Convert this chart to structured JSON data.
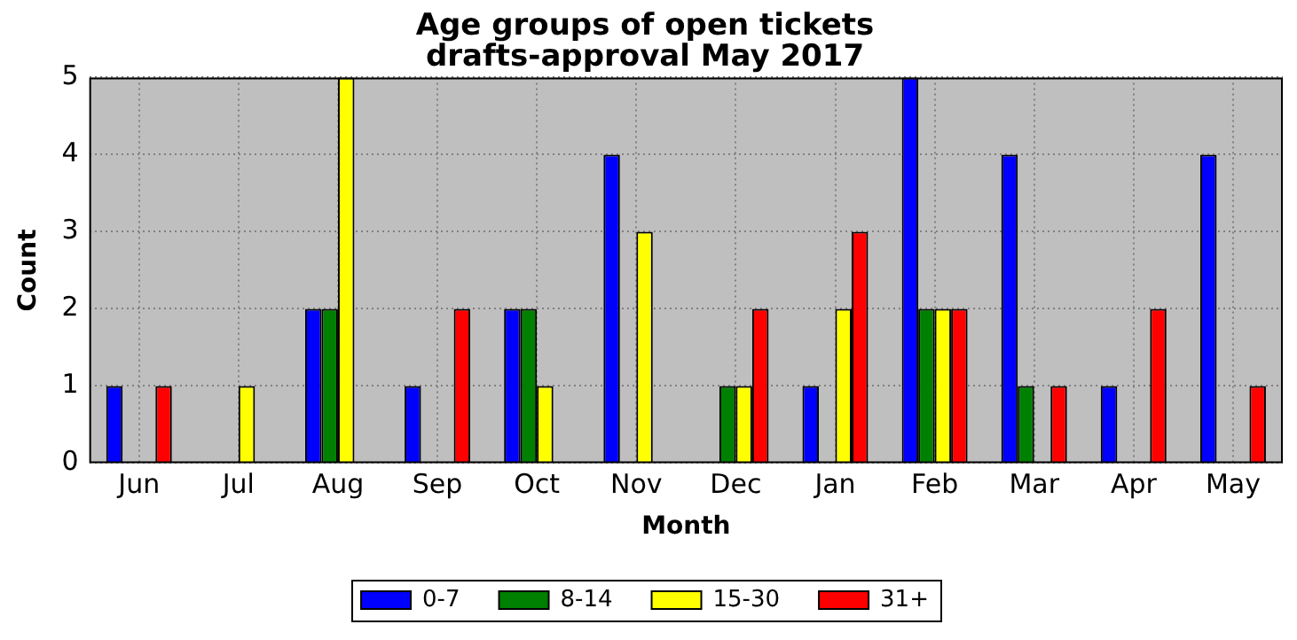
{
  "chart_data": {
    "type": "bar",
    "title": "Age groups of open tickets\ndrafts-approval May 2017",
    "xlabel": "Month",
    "ylabel": "Count",
    "categories": [
      "Jun",
      "Jul",
      "Aug",
      "Sep",
      "Oct",
      "Nov",
      "Dec",
      "Jan",
      "Feb",
      "Mar",
      "Apr",
      "May"
    ],
    "series": [
      {
        "name": "0-7",
        "color": "#0000ff",
        "values": [
          1,
          0,
          2,
          1,
          2,
          4,
          0,
          1,
          5,
          4,
          1,
          4
        ]
      },
      {
        "name": "8-14",
        "color": "#008000",
        "values": [
          0,
          0,
          2,
          0,
          2,
          0,
          1,
          0,
          2,
          1,
          0,
          0
        ]
      },
      {
        "name": "15-30",
        "color": "#ffff00",
        "values": [
          0,
          1,
          5,
          0,
          1,
          3,
          1,
          2,
          2,
          0,
          0,
          0
        ]
      },
      {
        "name": "31+",
        "color": "#ff0000",
        "values": [
          1,
          0,
          0,
          2,
          0,
          0,
          2,
          3,
          2,
          1,
          2,
          1
        ]
      }
    ],
    "ylim": [
      0,
      5
    ],
    "yticks": [
      0,
      1,
      2,
      3,
      4,
      5
    ],
    "grid": true,
    "legend": "bottom"
  }
}
